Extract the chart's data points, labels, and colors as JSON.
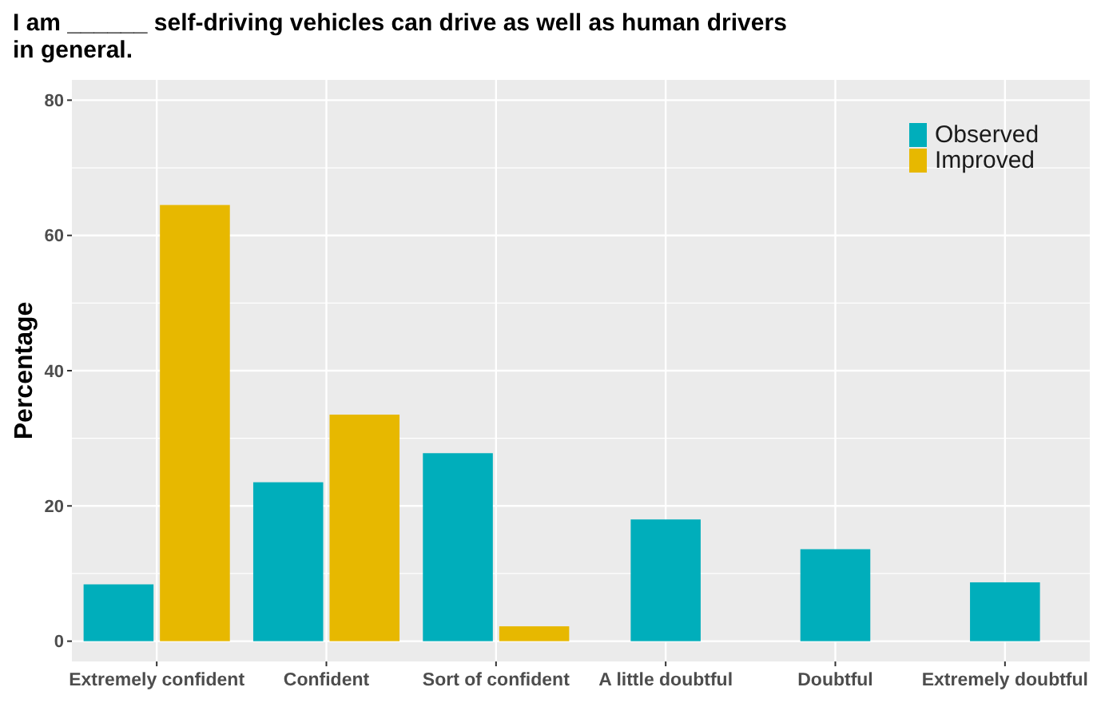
{
  "chart_data": {
    "type": "bar",
    "title": "I am ______  self-driving vehicles  can drive as well as human drivers in general.",
    "ylabel": "Percentage",
    "categories": [
      "Extremely confident",
      "Confident",
      "Sort of confident",
      "A little doubtful",
      "Doubtful",
      "Extremely doubtful"
    ],
    "series": [
      {
        "name": "Observed",
        "color": "#00aebb",
        "values": [
          8.4,
          23.5,
          27.8,
          18.0,
          13.6,
          8.7
        ]
      },
      {
        "name": "Improved",
        "color": "#e7b800",
        "values": [
          64.5,
          33.5,
          2.2,
          null,
          null,
          null
        ]
      }
    ],
    "ylim": [
      -3,
      83
    ],
    "yticks": [
      0,
      20,
      40,
      60,
      80
    ],
    "grid": true,
    "legend": "top right"
  }
}
